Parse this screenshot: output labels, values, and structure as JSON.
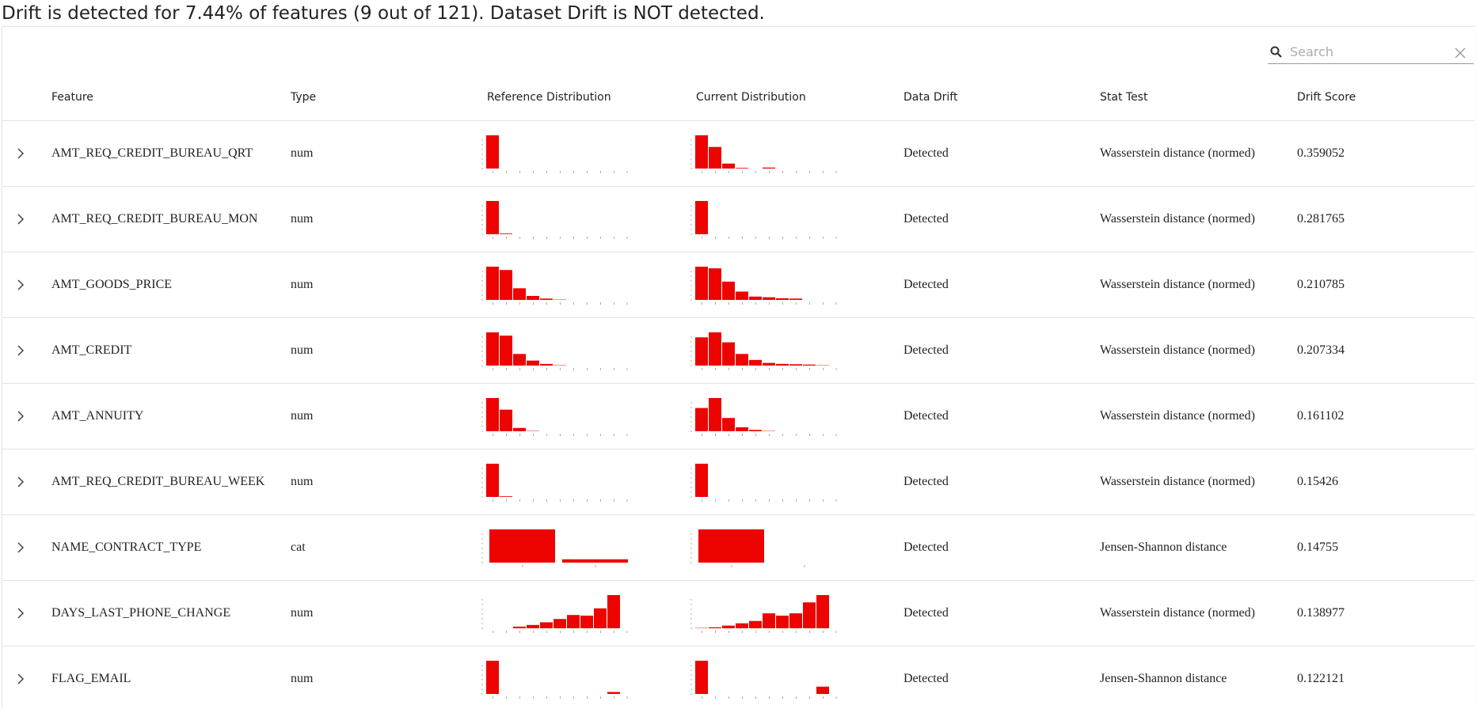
{
  "header": {
    "title": "Drift is detected for 7.44% of features (9 out of 121). Dataset Drift is NOT detected."
  },
  "search": {
    "placeholder": "Search"
  },
  "table": {
    "columns": [
      "Feature",
      "Type",
      "Reference Distribution",
      "Current Distribution",
      "Data Drift",
      "Stat Test",
      "Drift Score"
    ],
    "rows": [
      {
        "feature": "AMT_REQ_CREDIT_BUREAU_QRT",
        "type": "num",
        "reference_distribution": [
          100,
          0,
          0,
          0,
          0,
          0,
          0,
          0,
          0,
          0
        ],
        "current_distribution": [
          100,
          65,
          15,
          2,
          0,
          3,
          0,
          0,
          0,
          0
        ],
        "data_drift": "Detected",
        "stat_test": "Wasserstein distance (normed)",
        "drift_score": "0.359052"
      },
      {
        "feature": "AMT_REQ_CREDIT_BUREAU_MON",
        "type": "num",
        "reference_distribution": [
          100,
          2,
          0,
          0,
          0,
          0,
          0,
          0,
          0,
          0
        ],
        "current_distribution": [
          100,
          0,
          0,
          0,
          0,
          0,
          0,
          0,
          0,
          0
        ],
        "data_drift": "Detected",
        "stat_test": "Wasserstein distance (normed)",
        "drift_score": "0.281765"
      },
      {
        "feature": "AMT_GOODS_PRICE",
        "type": "num",
        "reference_distribution": [
          100,
          90,
          35,
          12,
          4,
          1,
          0,
          0,
          0,
          0
        ],
        "current_distribution": [
          100,
          95,
          55,
          25,
          10,
          8,
          5,
          4,
          0,
          0
        ],
        "data_drift": "Detected",
        "stat_test": "Wasserstein distance (normed)",
        "drift_score": "0.210785"
      },
      {
        "feature": "AMT_CREDIT",
        "type": "num",
        "reference_distribution": [
          100,
          90,
          35,
          15,
          5,
          1,
          0,
          0,
          0,
          0
        ],
        "current_distribution": [
          85,
          100,
          70,
          35,
          17,
          8,
          5,
          4,
          3,
          1
        ],
        "data_drift": "Detected",
        "stat_test": "Wasserstein distance (normed)",
        "drift_score": "0.207334"
      },
      {
        "feature": "AMT_ANNUITY",
        "type": "num",
        "reference_distribution": [
          100,
          65,
          10,
          1,
          0,
          0,
          0,
          0,
          0,
          0
        ],
        "current_distribution": [
          70,
          100,
          40,
          12,
          4,
          1,
          0,
          0,
          0,
          0
        ],
        "data_drift": "Detected",
        "stat_test": "Wasserstein distance (normed)",
        "drift_score": "0.161102"
      },
      {
        "feature": "AMT_REQ_CREDIT_BUREAU_WEEK",
        "type": "num",
        "reference_distribution": [
          100,
          2,
          0,
          0,
          0,
          0,
          0,
          0,
          0,
          0
        ],
        "current_distribution": [
          100,
          0,
          0,
          0,
          0,
          0,
          0,
          0,
          0,
          0
        ],
        "data_drift": "Detected",
        "stat_test": "Wasserstein distance (normed)",
        "drift_score": "0.15426"
      },
      {
        "feature": "NAME_CONTRACT_TYPE",
        "type": "cat",
        "reference_distribution": [
          100,
          10
        ],
        "current_distribution": [
          100,
          0
        ],
        "data_drift": "Detected",
        "stat_test": "Jensen-Shannon distance",
        "drift_score": "0.14755"
      },
      {
        "feature": "DAYS_LAST_PHONE_CHANGE",
        "type": "num",
        "reference_distribution": [
          0,
          0,
          5,
          10,
          18,
          28,
          40,
          38,
          60,
          100
        ],
        "current_distribution": [
          1,
          3,
          8,
          15,
          22,
          45,
          38,
          45,
          78,
          100
        ],
        "data_drift": "Detected",
        "stat_test": "Wasserstein distance (normed)",
        "drift_score": "0.138977"
      },
      {
        "feature": "FLAG_EMAIL",
        "type": "num",
        "reference_distribution": [
          100,
          0,
          0,
          0,
          0,
          0,
          0,
          0,
          0,
          6
        ],
        "current_distribution": [
          100,
          0,
          0,
          0,
          0,
          0,
          0,
          0,
          0,
          22
        ],
        "data_drift": "Detected",
        "stat_test": "Jensen-Shannon distance",
        "drift_score": "0.122121"
      }
    ]
  }
}
